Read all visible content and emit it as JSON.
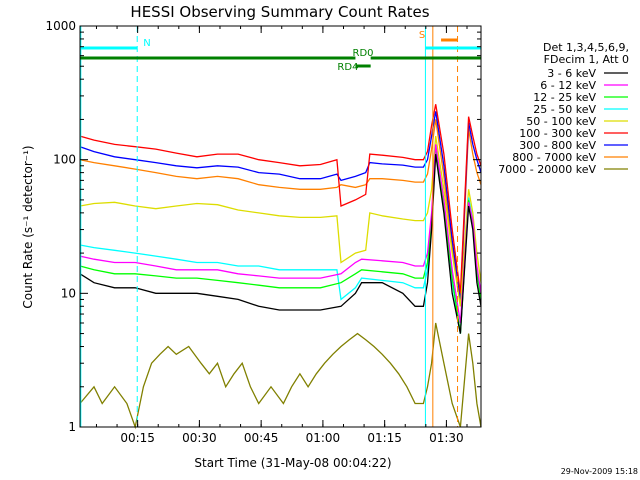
{
  "chart_data": {
    "type": "line",
    "title": "HESSI Observing Summary Count Rates",
    "xlabel": "Start Time (31-May-08 00:04:22)",
    "ylabel": "Count Rate (s⁻¹ detector⁻¹)",
    "y_scale": "log",
    "ylim": [
      1,
      1000
    ],
    "xlim_minutes": [
      6.6,
      104.0
    ],
    "x_ticks": [
      {
        "minutes": 20.6,
        "label": "00:15"
      },
      {
        "minutes": 35.6,
        "label": "00:30"
      },
      {
        "minutes": 50.6,
        "label": "00:45"
      },
      {
        "minutes": 65.6,
        "label": "01:00"
      },
      {
        "minutes": 80.6,
        "label": "01:15"
      },
      {
        "minutes": 95.6,
        "label": "01:30"
      }
    ],
    "y_ticks": [
      {
        "value": 1,
        "label": "1"
      },
      {
        "value": 10,
        "label": "10"
      },
      {
        "value": 100,
        "label": "100"
      },
      {
        "value": 1000,
        "label": "1000"
      }
    ],
    "legend_header": [
      "Det 1,3,4,5,6,9,",
      "FDecim 1, Att 0"
    ],
    "legend_placement": "right",
    "series": [
      {
        "name": "3 - 6 keV",
        "color": "#000000",
        "x": [
          6.6,
          10,
          15,
          20,
          25,
          30,
          35,
          40,
          45,
          50,
          55,
          60,
          65,
          70,
          73.5,
          75,
          80,
          85,
          88,
          90,
          91,
          92,
          93,
          95,
          97,
          99,
          101,
          102,
          103,
          104
        ],
        "y": [
          14,
          12,
          11,
          11,
          10,
          10,
          10,
          9.5,
          9,
          8,
          7.5,
          7.5,
          7.5,
          8,
          10,
          12,
          12,
          10,
          8,
          8,
          12,
          30,
          110,
          40,
          10,
          5,
          45,
          30,
          12,
          8
        ]
      },
      {
        "name": "6 - 12 keV",
        "color": "#ff00ff",
        "x": [
          6.6,
          10,
          15,
          20,
          25,
          30,
          35,
          40,
          45,
          50,
          55,
          60,
          65,
          70,
          73.5,
          75,
          80,
          85,
          88,
          90,
          91,
          92,
          93,
          95,
          97,
          99,
          101,
          102,
          103,
          104
        ],
        "y": [
          19,
          18,
          17,
          17,
          16,
          15,
          15,
          15,
          14,
          13.5,
          13,
          13,
          13,
          14,
          17,
          18,
          17.5,
          17,
          16,
          16,
          20,
          40,
          130,
          50,
          15,
          6,
          48,
          35,
          16,
          10
        ]
      },
      {
        "name": "12 - 25 keV",
        "color": "#00ff00",
        "x": [
          6.6,
          10,
          15,
          20,
          25,
          30,
          35,
          40,
          45,
          50,
          55,
          60,
          65,
          70,
          73.5,
          75,
          80,
          85,
          88,
          90,
          91,
          92,
          93,
          95,
          97,
          99,
          101,
          102,
          103,
          104
        ],
        "y": [
          16,
          15,
          14,
          14,
          13.5,
          13,
          13,
          12.5,
          12,
          11.5,
          11,
          11,
          11,
          12,
          14,
          15,
          14.5,
          14,
          13,
          13,
          17,
          35,
          120,
          45,
          13,
          5,
          50,
          32,
          14,
          9
        ]
      },
      {
        "name": "25 - 50 keV",
        "color": "#00ffff",
        "x": [
          6.6,
          10,
          15,
          20,
          25,
          30,
          35,
          40,
          45,
          50,
          55,
          60,
          65,
          69,
          70,
          73.5,
          75,
          80,
          85,
          88,
          90,
          91,
          92,
          93,
          95,
          97,
          99,
          101,
          102,
          103,
          104
        ],
        "y": [
          23,
          22,
          21,
          20,
          19,
          18,
          17,
          17,
          16,
          16,
          15,
          15,
          15,
          15,
          9,
          11,
          13,
          12.5,
          12,
          11,
          11,
          15,
          35,
          125,
          45,
          12,
          5,
          52,
          35,
          14,
          9
        ]
      },
      {
        "name": "50 - 100 keV",
        "color": "#dddd00",
        "x": [
          6.6,
          10,
          15,
          20,
          25,
          30,
          35,
          40,
          45,
          50,
          55,
          60,
          65,
          69,
          70,
          73.5,
          76,
          77,
          80,
          85,
          88,
          90,
          91,
          92,
          93,
          95,
          97,
          99,
          101,
          102,
          103,
          104
        ],
        "y": [
          45,
          47,
          48,
          45,
          43,
          45,
          47,
          46,
          42,
          40,
          38,
          37,
          37,
          38,
          17,
          20,
          21,
          40,
          38,
          36,
          35,
          35,
          40,
          60,
          150,
          60,
          20,
          8,
          60,
          40,
          20,
          12
        ]
      },
      {
        "name": "100 - 300 keV",
        "color": "#ff0000",
        "x": [
          6.6,
          10,
          15,
          20,
          25,
          30,
          35,
          40,
          45,
          50,
          55,
          60,
          65,
          69,
          70,
          73.5,
          76,
          77,
          80,
          85,
          88,
          90,
          91,
          92,
          93,
          95,
          97,
          99,
          101,
          102,
          103,
          104
        ],
        "y": [
          150,
          140,
          130,
          125,
          120,
          112,
          105,
          110,
          110,
          100,
          95,
          90,
          92,
          100,
          45,
          50,
          55,
          110,
          108,
          104,
          100,
          100,
          115,
          180,
          260,
          110,
          30,
          10,
          210,
          150,
          110,
          90
        ]
      },
      {
        "name": "300 - 800 keV",
        "color": "#0000ff",
        "x": [
          6.6,
          10,
          15,
          20,
          25,
          30,
          35,
          40,
          45,
          50,
          55,
          60,
          65,
          69,
          70,
          73.5,
          76,
          77,
          80,
          85,
          88,
          90,
          91,
          92,
          93,
          95,
          97,
          99,
          101,
          102,
          103,
          104
        ],
        "y": [
          125,
          115,
          105,
          100,
          95,
          90,
          87,
          90,
          88,
          80,
          78,
          72,
          72,
          78,
          70,
          75,
          80,
          95,
          93,
          91,
          88,
          88,
          100,
          150,
          230,
          90,
          25,
          9,
          190,
          130,
          100,
          80
        ]
      },
      {
        "name": "800 - 7000 keV",
        "color": "#ff8000",
        "x": [
          6.6,
          10,
          15,
          20,
          25,
          30,
          35,
          40,
          45,
          50,
          55,
          60,
          65,
          69,
          70,
          73.5,
          76,
          77,
          80,
          85,
          88,
          90,
          91,
          92,
          93,
          95,
          97,
          99,
          101,
          102,
          103,
          104
        ],
        "y": [
          100,
          95,
          90,
          85,
          80,
          75,
          72,
          75,
          72,
          65,
          62,
          60,
          60,
          62,
          65,
          62,
          65,
          72,
          72,
          70,
          68,
          68,
          78,
          120,
          200,
          75,
          22,
          8,
          170,
          110,
          80,
          65
        ]
      },
      {
        "name": "7000 - 20000 keV",
        "color": "#808000",
        "x": [
          6.6,
          10,
          12,
          15,
          18,
          20,
          22,
          24,
          26,
          28,
          30,
          33,
          36,
          38,
          40,
          42,
          44,
          46,
          48,
          50,
          53,
          56,
          58,
          60,
          62,
          64,
          66,
          68,
          70,
          72,
          74,
          76,
          78,
          80,
          82,
          84,
          86,
          88,
          90,
          91,
          92,
          93,
          95,
          97,
          99,
          101,
          102,
          103,
          104
        ],
        "y": [
          1.5,
          2,
          1.5,
          2,
          1.5,
          1,
          2,
          3,
          3.5,
          4,
          3.5,
          4,
          3,
          2.5,
          3,
          2,
          2.5,
          3,
          2,
          1.5,
          2,
          1.5,
          2,
          2.5,
          2,
          2.5,
          3,
          3.5,
          4,
          4.5,
          5,
          4.5,
          4,
          3.5,
          3,
          2.5,
          2,
          1.5,
          1.5,
          2,
          3,
          6,
          3,
          1.5,
          1,
          5,
          3,
          1.5,
          1
        ]
      }
    ],
    "annotations": [
      {
        "label": "N",
        "color": "#00ffff",
        "level": "top",
        "x_start": 6.6,
        "x_end": 20.5
      },
      {
        "label": "",
        "color": "#00ffff",
        "level": "top",
        "x_start": 90.5,
        "x_end": 104.0
      },
      {
        "label": "RD0",
        "color": "#008000",
        "level": "mid",
        "x_start": 6.6,
        "x_end": 104.0,
        "gap": [
          73.5,
          77.2
        ]
      },
      {
        "label": "RD4",
        "color": "#008000",
        "level": "low",
        "x_start": 73.5,
        "x_end": 77.2
      },
      {
        "label": "S",
        "color": "#ff8000",
        "level": "s",
        "x_start": 92.3,
        "x_end": 98.3,
        "gap": [
          92.3,
          94.3
        ]
      }
    ],
    "vertical_markers": [
      {
        "x": 6.8,
        "color": "#00ffff",
        "style": "solid"
      },
      {
        "x": 20.5,
        "color": "#00ffff",
        "style": "dashed"
      },
      {
        "x": 90.5,
        "color": "#00ffff",
        "style": "solid"
      },
      {
        "x": 104.0,
        "color": "#00ffff",
        "style": "dashed"
      },
      {
        "x": 92.3,
        "color": "#ff8000",
        "style": "solid"
      },
      {
        "x": 98.3,
        "color": "#ff8000",
        "style": "dashed"
      }
    ],
    "footer_stamp": "29-Nov-2009 15:18"
  }
}
